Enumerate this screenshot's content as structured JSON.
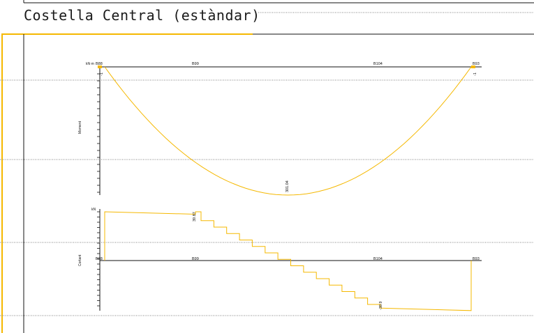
{
  "title": "Costella Central (estàndar)",
  "colors": {
    "curve": "#f5b800",
    "frame_accent": "#f5b800",
    "line": "#111111",
    "dotted": "#555555"
  },
  "moment_diagram": {
    "axis_caption": "Moment",
    "unit": "kN·m",
    "node_labels": [
      "B88",
      "B99",
      "B104",
      "B93"
    ],
    "end_values": [
      "-1",
      "-1"
    ],
    "max_value_label": "301.04",
    "max_value": 301.04,
    "curve": {
      "x": [
        0,
        0.1,
        0.2,
        0.3,
        0.4,
        0.5,
        0.6,
        0.7,
        0.8,
        0.9,
        1.0
      ],
      "y": [
        0,
        108,
        193,
        253,
        289,
        301.04,
        289,
        253,
        193,
        108,
        0
      ]
    }
  },
  "shear_diagram": {
    "axis_caption": "Cortant",
    "unit": "kN",
    "node_labels": [
      "B88",
      "B99",
      "B104",
      "B93"
    ],
    "labels": [
      "39.87",
      "-39.9"
    ],
    "steps_count": 14,
    "start_value": 40,
    "end_value": -40
  }
}
